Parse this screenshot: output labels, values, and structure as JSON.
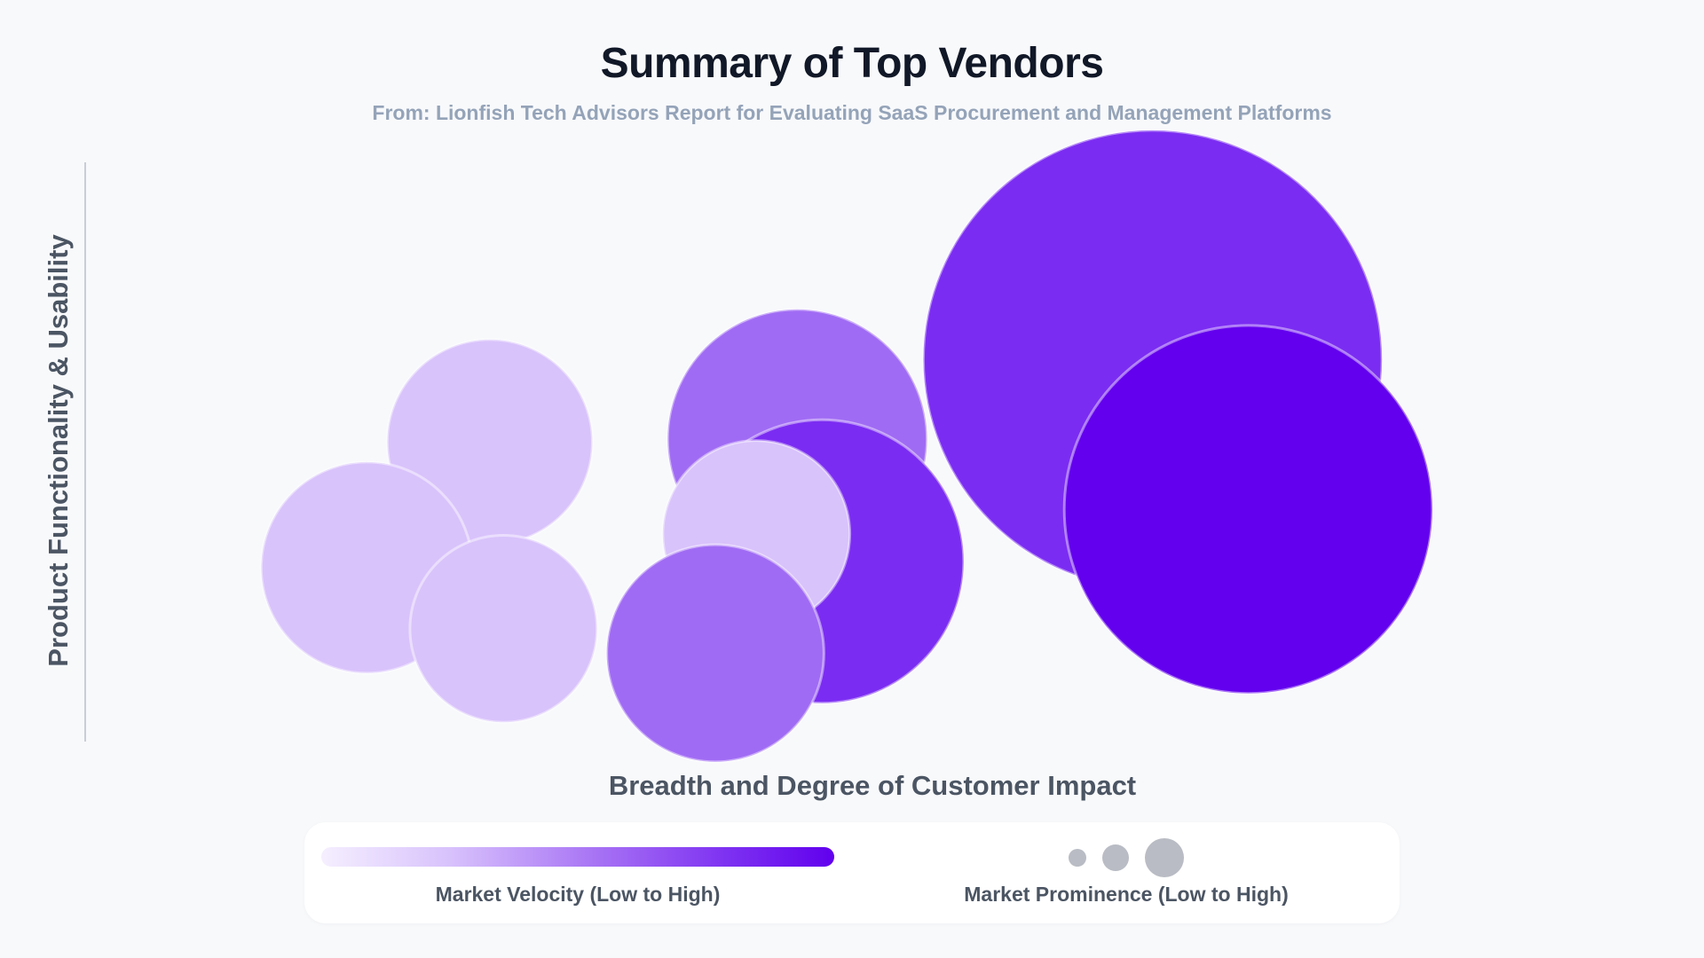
{
  "chart_data": {
    "type": "bubble",
    "title": "Summary of Top Vendors",
    "subtitle": "From: Lionfish Tech Advisors Report for Evaluating SaaS Procurement and Management Platforms",
    "xlabel": "Breadth and Degree of Customer Impact",
    "ylabel": "Product Functionality & Usability",
    "xlim": [
      0,
      100
    ],
    "ylim": [
      0,
      100
    ],
    "grid": false,
    "legend": {
      "color_label": "Market Velocity (Low to High)",
      "size_label": "Market Prominence (Low to High)",
      "color_scale": [
        "#f5efff",
        "#d8c2fc",
        "#a56ff4",
        "#7c2ff1",
        "#6100ee"
      ]
    },
    "points": [
      {
        "x": 23.5,
        "y": 49.5,
        "size": 34,
        "velocity": 2
      },
      {
        "x": 46,
        "y": 50,
        "size": 43,
        "velocity": 3
      },
      {
        "x": 47.8,
        "y": 30,
        "size": 47,
        "velocity": 4
      },
      {
        "x": 72,
        "y": 63,
        "size": 76,
        "velocity": 4
      },
      {
        "x": 14.5,
        "y": 29,
        "size": 35,
        "velocity": 2
      },
      {
        "x": 43,
        "y": 34.5,
        "size": 31,
        "velocity": 2
      },
      {
        "x": 24.5,
        "y": 19,
        "size": 31,
        "velocity": 2
      },
      {
        "x": 40,
        "y": 15,
        "size": 36,
        "velocity": 3
      },
      {
        "x": 79,
        "y": 38.5,
        "size": 61,
        "velocity": 5
      }
    ],
    "velocity_colors": {
      "2": "#d9c3fb",
      "3": "#a06bf4",
      "4": "#7b2cf2",
      "5": "#6300ee"
    }
  }
}
